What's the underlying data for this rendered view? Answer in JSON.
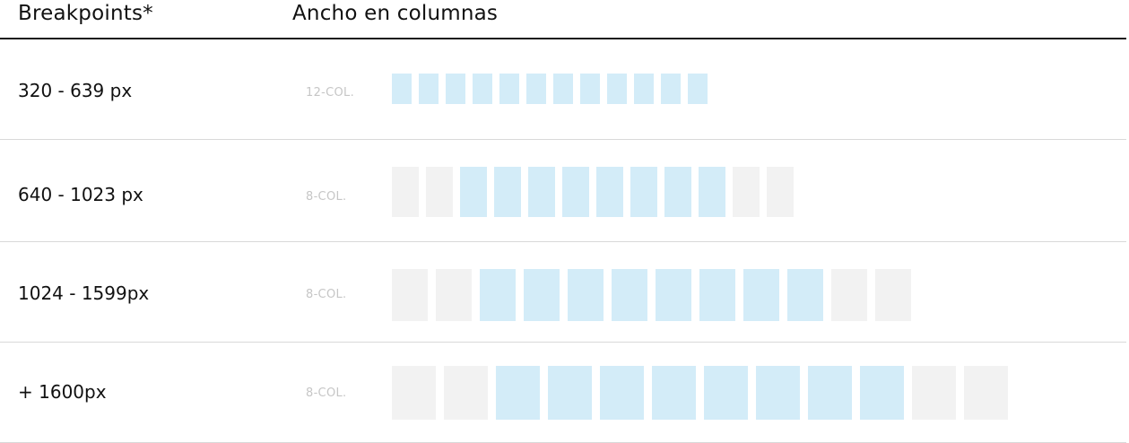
{
  "header": {
    "breakpoints": "Breakpoints*",
    "width_columns": "Ancho en columnas"
  },
  "rows": [
    {
      "range": "320 - 639 px",
      "columns": "12-COL.",
      "cells": [
        1,
        1,
        1,
        1,
        1,
        1,
        1,
        1,
        1,
        1,
        1,
        1
      ]
    },
    {
      "range": "640 - 1023 px",
      "columns": "8-COL.",
      "cells": [
        0,
        0,
        1,
        1,
        1,
        1,
        1,
        1,
        1,
        1,
        0,
        0
      ]
    },
    {
      "range": "1024 - 1599px",
      "columns": "8-COL.",
      "cells": [
        0,
        0,
        1,
        1,
        1,
        1,
        1,
        1,
        1,
        1,
        0,
        0
      ]
    },
    {
      "range": "+ 1600px",
      "columns": "8-COL.",
      "cells": [
        0,
        0,
        1,
        1,
        1,
        1,
        1,
        1,
        1,
        1,
        0,
        0
      ]
    }
  ],
  "colors": {
    "active_column": "#d3ecf8",
    "inactive_column": "#f2f2f2",
    "rule": "#1a1a1a",
    "divider": "#d9d9d9"
  }
}
